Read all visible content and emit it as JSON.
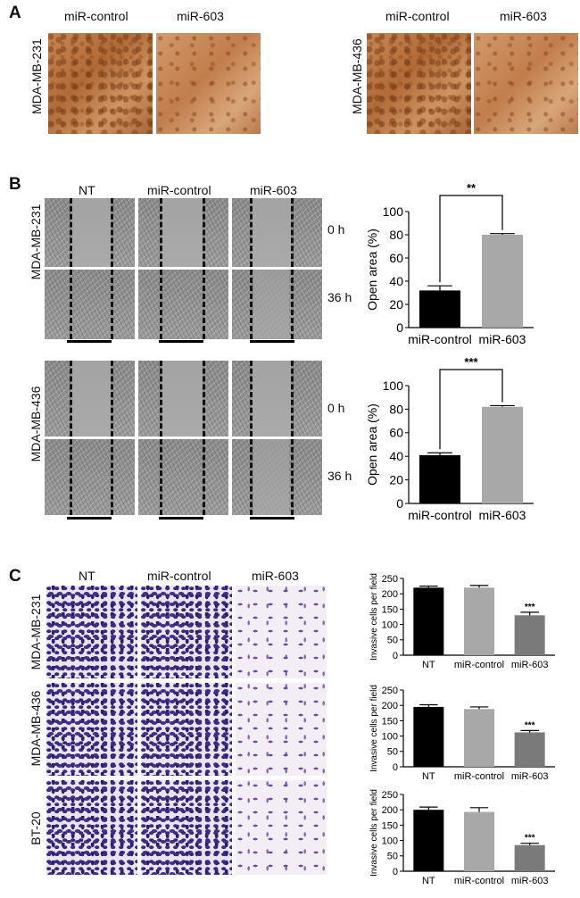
{
  "panels": {
    "A": {
      "letter": "A",
      "left": {
        "cell_line": "MDA-MB-231",
        "col1": "miR-control",
        "col2": "miR-603"
      },
      "right": {
        "cell_line": "MDA-MB-436",
        "col1": "miR-control",
        "col2": "miR-603"
      }
    },
    "B": {
      "letter": "B",
      "columns": [
        "NT",
        "miR-control",
        "miR-603"
      ],
      "rows_top": {
        "cell_line": "MDA-MB-231",
        "t0": "0 h",
        "t1": "36 h"
      },
      "rows_bottom": {
        "cell_line": "MDA-MB-436",
        "t0": "0 h",
        "t1": "36 h"
      }
    },
    "C": {
      "letter": "C",
      "columns": [
        "NT",
        "miR-control",
        "miR-603"
      ],
      "rows": [
        "MDA-MB-231",
        "MDA-MB-436",
        "BT-20"
      ]
    }
  },
  "chart_data": [
    {
      "type": "bar",
      "categories": [
        "miR-control",
        "miR-603"
      ],
      "values": [
        32,
        80
      ],
      "errors": [
        4,
        1
      ],
      "colors": [
        "#000000",
        "#a8a8a8"
      ],
      "ylabel": "Open area (%)",
      "ylim": [
        0,
        100
      ],
      "yticks": [
        0,
        20,
        40,
        60,
        80,
        100
      ],
      "significance": "**"
    },
    {
      "type": "bar",
      "categories": [
        "miR-control",
        "miR-603"
      ],
      "values": [
        41,
        82
      ],
      "errors": [
        2,
        1
      ],
      "colors": [
        "#000000",
        "#a8a8a8"
      ],
      "ylabel": "Open area (%)",
      "ylim": [
        0,
        100
      ],
      "yticks": [
        0,
        20,
        40,
        60,
        80,
        100
      ],
      "significance": "***"
    },
    {
      "type": "bar",
      "categories": [
        "NT",
        "miR-control",
        "miR-603"
      ],
      "values": [
        220,
        220,
        130
      ],
      "errors": [
        5,
        7,
        10
      ],
      "colors": [
        "#000000",
        "#a8a8a8",
        "#7a7a7a"
      ],
      "ylabel": "Invasive cells per field",
      "ylim": [
        0,
        250
      ],
      "yticks": [
        0,
        50,
        100,
        150,
        200,
        250
      ],
      "significance": "***"
    },
    {
      "type": "bar",
      "categories": [
        "NT",
        "miR-control",
        "miR-603"
      ],
      "values": [
        195,
        188,
        112
      ],
      "errors": [
        7,
        7,
        6
      ],
      "colors": [
        "#000000",
        "#a8a8a8",
        "#7a7a7a"
      ],
      "ylabel": "Invasive cells per field",
      "ylim": [
        0,
        250
      ],
      "yticks": [
        0,
        50,
        100,
        150,
        200,
        250
      ],
      "significance": "***"
    },
    {
      "type": "bar",
      "categories": [
        "NT",
        "miR-control",
        "miR-603"
      ],
      "values": [
        200,
        193,
        85
      ],
      "errors": [
        9,
        14,
        6
      ],
      "colors": [
        "#000000",
        "#a8a8a8",
        "#7a7a7a"
      ],
      "ylabel": "Invasive cells per field",
      "ylim": [
        0,
        250
      ],
      "yticks": [
        0,
        50,
        100,
        150,
        200,
        250
      ],
      "significance": "***"
    }
  ]
}
